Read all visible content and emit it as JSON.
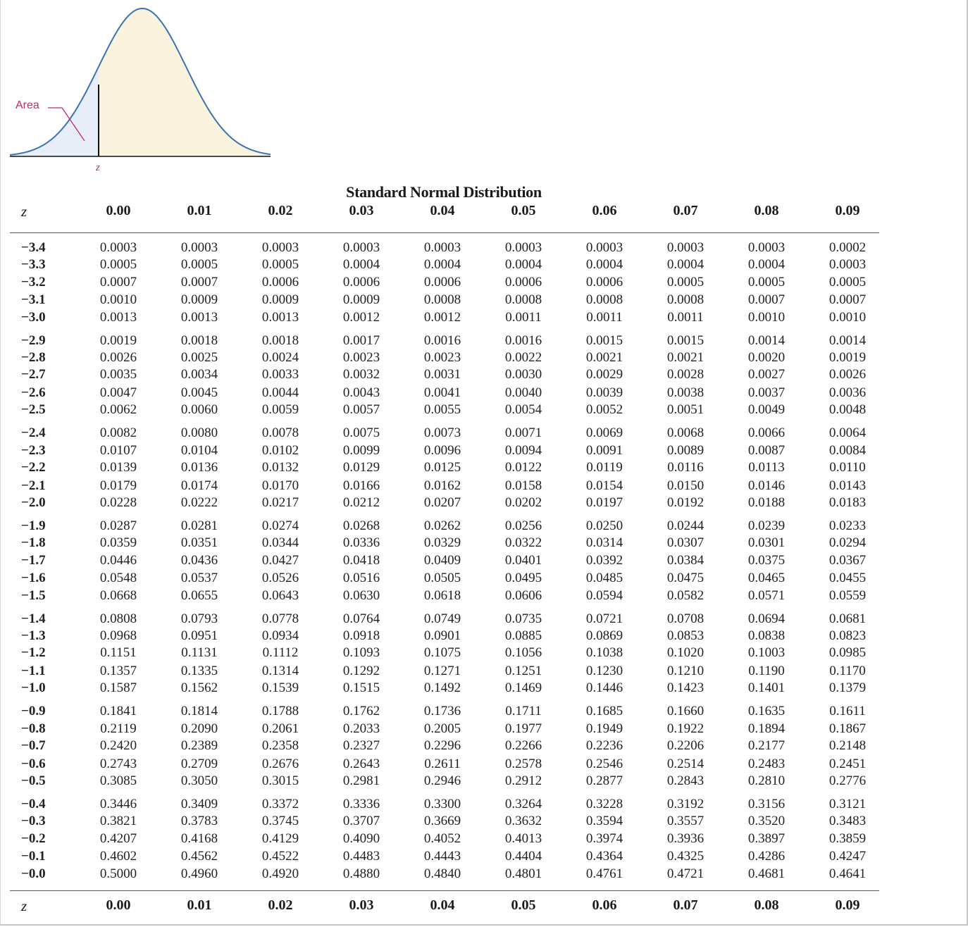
{
  "figure": {
    "area_label": "Area",
    "z_label": "z"
  },
  "table": {
    "title": "Standard Normal Distribution",
    "z_header": "z",
    "columns": [
      "0.00",
      "0.01",
      "0.02",
      "0.03",
      "0.04",
      "0.05",
      "0.06",
      "0.07",
      "0.08",
      "0.09"
    ],
    "rows": [
      {
        "z": "−3.4",
        "values": [
          "0.0003",
          "0.0003",
          "0.0003",
          "0.0003",
          "0.0003",
          "0.0003",
          "0.0003",
          "0.0003",
          "0.0003",
          "0.0002"
        ]
      },
      {
        "z": "−3.3",
        "values": [
          "0.0005",
          "0.0005",
          "0.0005",
          "0.0004",
          "0.0004",
          "0.0004",
          "0.0004",
          "0.0004",
          "0.0004",
          "0.0003"
        ]
      },
      {
        "z": "−3.2",
        "values": [
          "0.0007",
          "0.0007",
          "0.0006",
          "0.0006",
          "0.0006",
          "0.0006",
          "0.0006",
          "0.0005",
          "0.0005",
          "0.0005"
        ]
      },
      {
        "z": "−3.1",
        "values": [
          "0.0010",
          "0.0009",
          "0.0009",
          "0.0009",
          "0.0008",
          "0.0008",
          "0.0008",
          "0.0008",
          "0.0007",
          "0.0007"
        ]
      },
      {
        "z": "−3.0",
        "values": [
          "0.0013",
          "0.0013",
          "0.0013",
          "0.0012",
          "0.0012",
          "0.0011",
          "0.0011",
          "0.0011",
          "0.0010",
          "0.0010"
        ]
      },
      {
        "z": "−2.9",
        "values": [
          "0.0019",
          "0.0018",
          "0.0018",
          "0.0017",
          "0.0016",
          "0.0016",
          "0.0015",
          "0.0015",
          "0.0014",
          "0.0014"
        ]
      },
      {
        "z": "−2.8",
        "values": [
          "0.0026",
          "0.0025",
          "0.0024",
          "0.0023",
          "0.0023",
          "0.0022",
          "0.0021",
          "0.0021",
          "0.0020",
          "0.0019"
        ]
      },
      {
        "z": "−2.7",
        "values": [
          "0.0035",
          "0.0034",
          "0.0033",
          "0.0032",
          "0.0031",
          "0.0030",
          "0.0029",
          "0.0028",
          "0.0027",
          "0.0026"
        ]
      },
      {
        "z": "−2.6",
        "values": [
          "0.0047",
          "0.0045",
          "0.0044",
          "0.0043",
          "0.0041",
          "0.0040",
          "0.0039",
          "0.0038",
          "0.0037",
          "0.0036"
        ]
      },
      {
        "z": "−2.5",
        "values": [
          "0.0062",
          "0.0060",
          "0.0059",
          "0.0057",
          "0.0055",
          "0.0054",
          "0.0052",
          "0.0051",
          "0.0049",
          "0.0048"
        ]
      },
      {
        "z": "−2.4",
        "values": [
          "0.0082",
          "0.0080",
          "0.0078",
          "0.0075",
          "0.0073",
          "0.0071",
          "0.0069",
          "0.0068",
          "0.0066",
          "0.0064"
        ]
      },
      {
        "z": "−2.3",
        "values": [
          "0.0107",
          "0.0104",
          "0.0102",
          "0.0099",
          "0.0096",
          "0.0094",
          "0.0091",
          "0.0089",
          "0.0087",
          "0.0084"
        ]
      },
      {
        "z": "−2.2",
        "values": [
          "0.0139",
          "0.0136",
          "0.0132",
          "0.0129",
          "0.0125",
          "0.0122",
          "0.0119",
          "0.0116",
          "0.0113",
          "0.0110"
        ]
      },
      {
        "z": "−2.1",
        "values": [
          "0.0179",
          "0.0174",
          "0.0170",
          "0.0166",
          "0.0162",
          "0.0158",
          "0.0154",
          "0.0150",
          "0.0146",
          "0.0143"
        ]
      },
      {
        "z": "−2.0",
        "values": [
          "0.0228",
          "0.0222",
          "0.0217",
          "0.0212",
          "0.0207",
          "0.0202",
          "0.0197",
          "0.0192",
          "0.0188",
          "0.0183"
        ]
      },
      {
        "z": "−1.9",
        "values": [
          "0.0287",
          "0.0281",
          "0.0274",
          "0.0268",
          "0.0262",
          "0.0256",
          "0.0250",
          "0.0244",
          "0.0239",
          "0.0233"
        ]
      },
      {
        "z": "−1.8",
        "values": [
          "0.0359",
          "0.0351",
          "0.0344",
          "0.0336",
          "0.0329",
          "0.0322",
          "0.0314",
          "0.0307",
          "0.0301",
          "0.0294"
        ]
      },
      {
        "z": "−1.7",
        "values": [
          "0.0446",
          "0.0436",
          "0.0427",
          "0.0418",
          "0.0409",
          "0.0401",
          "0.0392",
          "0.0384",
          "0.0375",
          "0.0367"
        ]
      },
      {
        "z": "−1.6",
        "values": [
          "0.0548",
          "0.0537",
          "0.0526",
          "0.0516",
          "0.0505",
          "0.0495",
          "0.0485",
          "0.0475",
          "0.0465",
          "0.0455"
        ]
      },
      {
        "z": "−1.5",
        "values": [
          "0.0668",
          "0.0655",
          "0.0643",
          "0.0630",
          "0.0618",
          "0.0606",
          "0.0594",
          "0.0582",
          "0.0571",
          "0.0559"
        ]
      },
      {
        "z": "−1.4",
        "values": [
          "0.0808",
          "0.0793",
          "0.0778",
          "0.0764",
          "0.0749",
          "0.0735",
          "0.0721",
          "0.0708",
          "0.0694",
          "0.0681"
        ]
      },
      {
        "z": "−1.3",
        "values": [
          "0.0968",
          "0.0951",
          "0.0934",
          "0.0918",
          "0.0901",
          "0.0885",
          "0.0869",
          "0.0853",
          "0.0838",
          "0.0823"
        ]
      },
      {
        "z": "−1.2",
        "values": [
          "0.1151",
          "0.1131",
          "0.1112",
          "0.1093",
          "0.1075",
          "0.1056",
          "0.1038",
          "0.1020",
          "0.1003",
          "0.0985"
        ]
      },
      {
        "z": "−1.1",
        "values": [
          "0.1357",
          "0.1335",
          "0.1314",
          "0.1292",
          "0.1271",
          "0.1251",
          "0.1230",
          "0.1210",
          "0.1190",
          "0.1170"
        ]
      },
      {
        "z": "−1.0",
        "values": [
          "0.1587",
          "0.1562",
          "0.1539",
          "0.1515",
          "0.1492",
          "0.1469",
          "0.1446",
          "0.1423",
          "0.1401",
          "0.1379"
        ]
      },
      {
        "z": "−0.9",
        "values": [
          "0.1841",
          "0.1814",
          "0.1788",
          "0.1762",
          "0.1736",
          "0.1711",
          "0.1685",
          "0.1660",
          "0.1635",
          "0.1611"
        ]
      },
      {
        "z": "−0.8",
        "values": [
          "0.2119",
          "0.2090",
          "0.2061",
          "0.2033",
          "0.2005",
          "0.1977",
          "0.1949",
          "0.1922",
          "0.1894",
          "0.1867"
        ]
      },
      {
        "z": "−0.7",
        "values": [
          "0.2420",
          "0.2389",
          "0.2358",
          "0.2327",
          "0.2296",
          "0.2266",
          "0.2236",
          "0.2206",
          "0.2177",
          "0.2148"
        ]
      },
      {
        "z": "−0.6",
        "values": [
          "0.2743",
          "0.2709",
          "0.2676",
          "0.2643",
          "0.2611",
          "0.2578",
          "0.2546",
          "0.2514",
          "0.2483",
          "0.2451"
        ]
      },
      {
        "z": "−0.5",
        "values": [
          "0.3085",
          "0.3050",
          "0.3015",
          "0.2981",
          "0.2946",
          "0.2912",
          "0.2877",
          "0.2843",
          "0.2810",
          "0.2776"
        ]
      },
      {
        "z": "−0.4",
        "values": [
          "0.3446",
          "0.3409",
          "0.3372",
          "0.3336",
          "0.3300",
          "0.3264",
          "0.3228",
          "0.3192",
          "0.3156",
          "0.3121"
        ]
      },
      {
        "z": "−0.3",
        "values": [
          "0.3821",
          "0.3783",
          "0.3745",
          "0.3707",
          "0.3669",
          "0.3632",
          "0.3594",
          "0.3557",
          "0.3520",
          "0.3483"
        ]
      },
      {
        "z": "−0.2",
        "values": [
          "0.4207",
          "0.4168",
          "0.4129",
          "0.4090",
          "0.4052",
          "0.4013",
          "0.3974",
          "0.3936",
          "0.3897",
          "0.3859"
        ]
      },
      {
        "z": "−0.1",
        "values": [
          "0.4602",
          "0.4562",
          "0.4522",
          "0.4483",
          "0.4443",
          "0.4404",
          "0.4364",
          "0.4325",
          "0.4286",
          "0.4247"
        ]
      },
      {
        "z": "−0.0",
        "values": [
          "0.5000",
          "0.4960",
          "0.4920",
          "0.4880",
          "0.4840",
          "0.4801",
          "0.4761",
          "0.4721",
          "0.4681",
          "0.4641"
        ]
      }
    ]
  },
  "colors": {
    "curve": "#3d72b4",
    "tail_fill": "#e7eef7",
    "body_fill": "#faf3de",
    "label": "#c4296b"
  }
}
